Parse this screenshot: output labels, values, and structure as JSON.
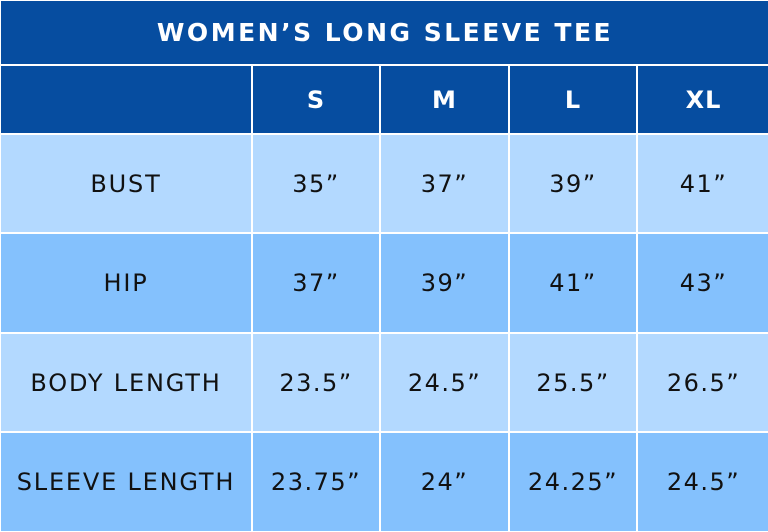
{
  "title": "WOMEN’S LONG SLEEVE TEE",
  "header": {
    "corner": "",
    "sizes": [
      "S",
      "M",
      "L",
      "XL"
    ]
  },
  "rows": [
    {
      "label": "BUST",
      "values": [
        "35”",
        "37”",
        "39”",
        "41”"
      ]
    },
    {
      "label": "HIP",
      "values": [
        "37”",
        "39”",
        "41”",
        "43”"
      ]
    },
    {
      "label": "BODY LENGTH",
      "values": [
        "23.5”",
        "24.5”",
        "25.5”",
        "26.5”"
      ]
    },
    {
      "label": "SLEEVE LENGTH",
      "values": [
        "23.75”",
        "24”",
        "24.25”",
        "24.5”"
      ]
    }
  ],
  "colors": {
    "title_bg": "#064da0",
    "light_bg": "#b3d9ff",
    "dark_bg": "#84c1fd"
  }
}
